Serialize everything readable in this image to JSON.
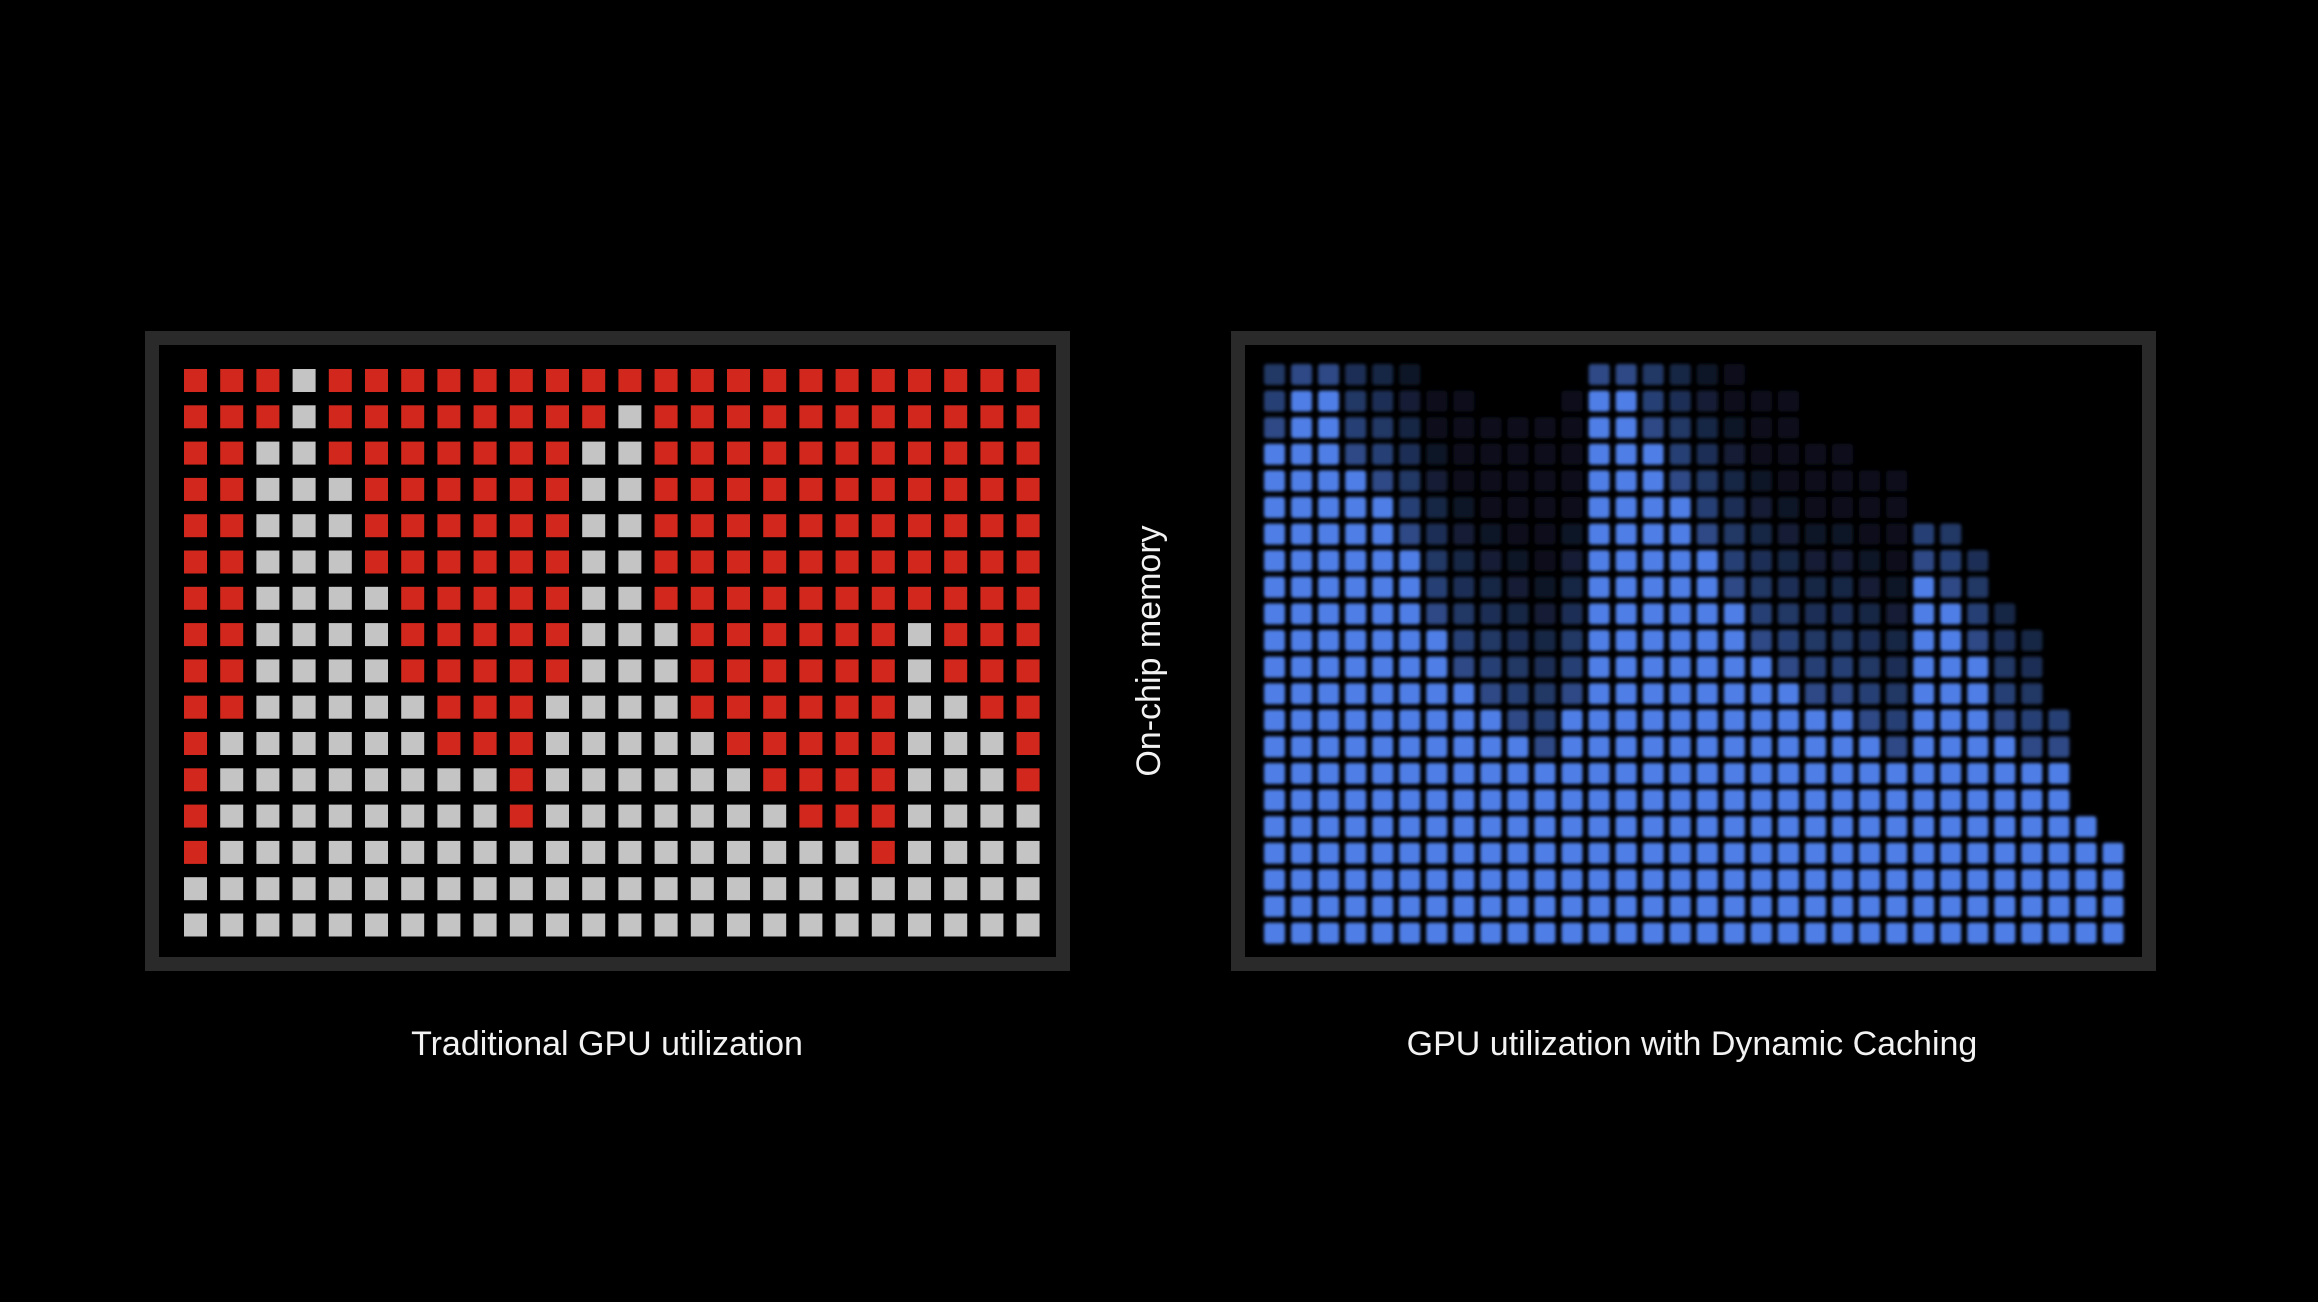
{
  "memory_label": "On-chip memory",
  "left_label": "Traditional GPU utilization",
  "right_label": "GPU utilization with Dynamic Caching"
}
